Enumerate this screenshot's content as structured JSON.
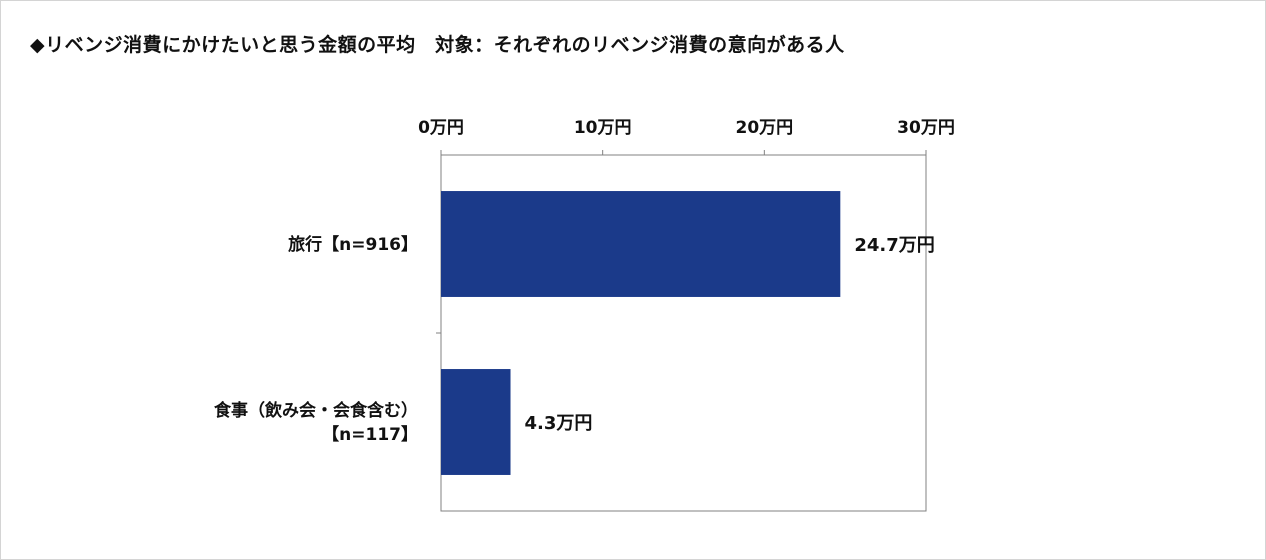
{
  "chart_data": {
    "type": "bar",
    "orientation": "horizontal",
    "title": "◆リベンジ消費にかけたいと思う金額の平均　対象：それぞれのリベンジ消費の意向がある人",
    "categories": [
      [
        "旅行【n=916】"
      ],
      [
        "食事（飲み会・会食含む）",
        "【n=117】"
      ]
    ],
    "values": [
      24.7,
      4.3
    ],
    "value_labels": [
      "24.7万円",
      "4.3万円"
    ],
    "unit": "万円",
    "xlim": [
      0,
      30
    ],
    "xticks": [
      0,
      10,
      20,
      30
    ],
    "xtick_labels": [
      "0万円",
      "10万円",
      "20万円",
      "30万円"
    ],
    "xaxis_position": "top",
    "grid": false,
    "legend": "none",
    "bar_color": "#1b3a8a"
  }
}
